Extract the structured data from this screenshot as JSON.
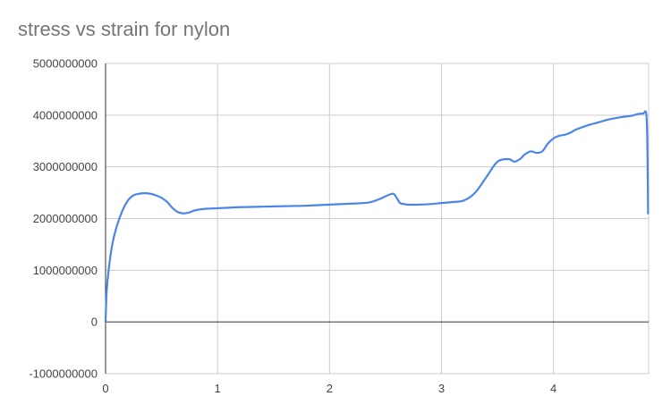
{
  "chart_data": {
    "type": "line",
    "title": "stress vs strain for nylon",
    "xlabel": "",
    "ylabel": "",
    "xlim": [
      0,
      4.85
    ],
    "ylim": [
      -1000000000,
      5000000000
    ],
    "x_ticks": [
      0,
      1,
      2,
      3,
      4
    ],
    "y_ticks": [
      -1000000000,
      0,
      1000000000,
      2000000000,
      3000000000,
      4000000000,
      5000000000
    ],
    "x_tick_labels": [
      "0",
      "1",
      "2",
      "3",
      "4"
    ],
    "y_tick_labels": [
      "-1000000000",
      "0",
      "1000000000",
      "2000000000",
      "3000000000",
      "4000000000",
      "5000000000"
    ],
    "grid": true,
    "legend": "none",
    "color": "#4a86e8",
    "series": [
      {
        "x": [
          0,
          0.01,
          0.03,
          0.06,
          0.1,
          0.15,
          0.2,
          0.25,
          0.3,
          0.35,
          0.4,
          0.45,
          0.5,
          0.55,
          0.6,
          0.65,
          0.7,
          0.75,
          0.8,
          0.9,
          1.0,
          1.1,
          1.2,
          1.4,
          1.6,
          1.8,
          2.0,
          2.2,
          2.35,
          2.45,
          2.52,
          2.57,
          2.6,
          2.63,
          2.67,
          2.7,
          2.8,
          2.9,
          3.0,
          3.1,
          3.2,
          3.3,
          3.4,
          3.5,
          3.6,
          3.65,
          3.7,
          3.75,
          3.8,
          3.85,
          3.9,
          3.95,
          4.0,
          4.05,
          4.1,
          4.15,
          4.2,
          4.3,
          4.4,
          4.5,
          4.6,
          4.7,
          4.75,
          4.8,
          4.83,
          4.84,
          4.845
        ],
        "y": [
          0,
          600000000,
          1050000000,
          1500000000,
          1850000000,
          2150000000,
          2350000000,
          2450000000,
          2480000000,
          2490000000,
          2480000000,
          2450000000,
          2400000000,
          2320000000,
          2200000000,
          2120000000,
          2100000000,
          2120000000,
          2160000000,
          2190000000,
          2200000000,
          2210000000,
          2220000000,
          2230000000,
          2240000000,
          2250000000,
          2270000000,
          2290000000,
          2310000000,
          2380000000,
          2450000000,
          2480000000,
          2400000000,
          2300000000,
          2280000000,
          2270000000,
          2270000000,
          2280000000,
          2300000000,
          2320000000,
          2350000000,
          2500000000,
          2800000000,
          3100000000,
          3150000000,
          3100000000,
          3150000000,
          3250000000,
          3300000000,
          3270000000,
          3300000000,
          3450000000,
          3550000000,
          3600000000,
          3620000000,
          3660000000,
          3720000000,
          3800000000,
          3860000000,
          3920000000,
          3960000000,
          3990000000,
          4020000000,
          4030000000,
          4010000000,
          3200000000,
          2100000000
        ]
      }
    ]
  }
}
